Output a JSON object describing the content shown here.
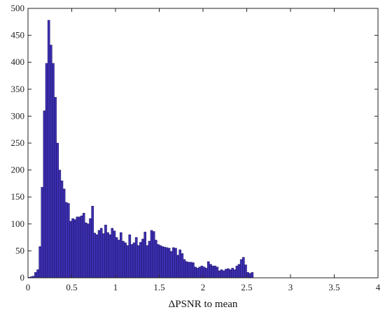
{
  "chart_data": {
    "type": "bar",
    "title": "",
    "xlabel": "ΔPSNR to mean",
    "ylabel": "",
    "xlim": [
      0,
      4
    ],
    "ylim": [
      0,
      500
    ],
    "xticks": [
      "0",
      "0.5",
      "1",
      "1.5",
      "2",
      "2.5",
      "3",
      "3.5",
      "4"
    ],
    "yticks": [
      "0",
      "50",
      "100",
      "150",
      "200",
      "250",
      "300",
      "350",
      "400",
      "450",
      "500"
    ],
    "bin_width": 0.025,
    "bin_start": 0.0,
    "bar_color": "#3c2fb0",
    "grid": false,
    "values": [
      1,
      2,
      3,
      10,
      15,
      58,
      168,
      310,
      398,
      478,
      432,
      398,
      335,
      250,
      200,
      180,
      165,
      140,
      138,
      105,
      110,
      108,
      113,
      113,
      115,
      120,
      102,
      100,
      110,
      133,
      83,
      80,
      88,
      92,
      82,
      98,
      84,
      80,
      92,
      87,
      75,
      70,
      84,
      68,
      65,
      60,
      80,
      62,
      65,
      75,
      60,
      66,
      72,
      85,
      60,
      68,
      88,
      86,
      70,
      62,
      60,
      58,
      57,
      56,
      55,
      49,
      56,
      55,
      42,
      52,
      45,
      34,
      30,
      29,
      29,
      28,
      20,
      18,
      20,
      22,
      20,
      18,
      30,
      25,
      22,
      22,
      20,
      13,
      15,
      13,
      16,
      17,
      15,
      18,
      15,
      22,
      25,
      34,
      38,
      24,
      10,
      8,
      10
    ]
  }
}
